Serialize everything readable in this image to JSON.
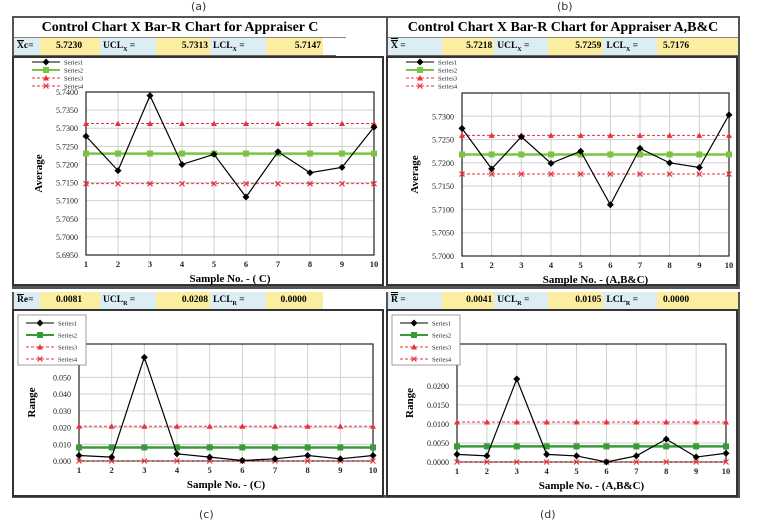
{
  "captions": [
    "(a)",
    "(b)",
    "(c)",
    "(d)"
  ],
  "panels": [
    {
      "title": "Control Chart X Bar-R Chart for Appraiser C",
      "stats": {
        "mean_label": "X",
        "mean_suffix": "c=",
        "mean_value": "5.7230",
        "ucl_label": "UCL",
        "ucl_sub": "X",
        "ucl_eq": " =",
        "ucl_value": "5.7313",
        "lcl_label": "LCL",
        "lcl_sub": "X",
        "lcl_eq": " =",
        "lcl_value": "5.7147"
      }
    },
    {
      "title": "Control Chart X Bar-R Chart for Appraiser A,B&C",
      "stats": {
        "mean_label": "X",
        "mean_suffix": " =",
        "mean_value": "5.7218",
        "ucl_label": "UCL",
        "ucl_sub": "X",
        "ucl_eq": " =",
        "ucl_value": "5.7259",
        "lcl_label": "LCL",
        "lcl_sub": "X",
        "lcl_eq": " =",
        "lcl_value": "5.7176"
      }
    },
    {
      "stats": {
        "mean_label": "R",
        "mean_suffix": "e=",
        "mean_value": "0.0081",
        "ucl_label": "UCL",
        "ucl_sub": "R",
        "ucl_eq": " =",
        "ucl_value": "0.0208",
        "lcl_label": "LCL",
        "lcl_sub": "R",
        "lcl_eq": " =",
        "lcl_value": "0.0000"
      }
    },
    {
      "stats": {
        "mean_label": "R",
        "mean_suffix": " =",
        "mean_value": "0.0041",
        "ucl_label": "UCL",
        "ucl_sub": "R",
        "ucl_eq": " =",
        "ucl_value": "0.0105",
        "lcl_label": "LCL",
        "lcl_sub": "R",
        "lcl_eq": " =",
        "lcl_value": "0.0000"
      }
    }
  ],
  "chart_data": [
    {
      "type": "line",
      "xlabel": "Sample No. - ( C)",
      "ylabel": "Average",
      "categories": [
        "1",
        "2",
        "3",
        "4",
        "5",
        "6",
        "7",
        "8",
        "9",
        "10"
      ],
      "ylim": [
        5.695,
        5.74
      ],
      "yticks": [
        "5.6950",
        "5.7000",
        "5.7050",
        "5.7100",
        "5.7150",
        "5.7200",
        "5.7250",
        "5.7300",
        "5.7350",
        "5.7400"
      ],
      "grid": true,
      "legend": "top-left",
      "series": [
        {
          "name": "Series1",
          "color": "#000000",
          "values": [
            5.7278,
            5.7183,
            5.739,
            5.72,
            5.7228,
            5.711,
            5.7235,
            5.7177,
            5.7192,
            5.7303
          ]
        },
        {
          "name": "Series2",
          "color": "#7dc242",
          "values": [
            5.723,
            5.723,
            5.723,
            5.723,
            5.723,
            5.723,
            5.723,
            5.723,
            5.723,
            5.723
          ]
        },
        {
          "name": "Series3",
          "color": "#e8323c",
          "values": [
            5.7313,
            5.7313,
            5.7313,
            5.7313,
            5.7313,
            5.7313,
            5.7313,
            5.7313,
            5.7313,
            5.7313
          ]
        },
        {
          "name": "Series4",
          "color": "#e8323c",
          "values": [
            5.7147,
            5.7147,
            5.7147,
            5.7147,
            5.7147,
            5.7147,
            5.7147,
            5.7147,
            5.7147,
            5.7147
          ]
        }
      ]
    },
    {
      "type": "line",
      "xlabel": "Sample No. - (A,B&C)",
      "ylabel": "Average",
      "categories": [
        "1",
        "2",
        "3",
        "4",
        "5",
        "6",
        "7",
        "8",
        "9",
        "10"
      ],
      "ylim": [
        5.7,
        5.735
      ],
      "yticks": [
        "5.7000",
        "5.7050",
        "5.7100",
        "5.7150",
        "5.7200",
        "5.7250",
        "5.7300"
      ],
      "grid": true,
      "legend": "top-left",
      "series": [
        {
          "name": "Series1",
          "color": "#000000",
          "values": [
            5.7274,
            5.7187,
            5.7256,
            5.7199,
            5.7225,
            5.711,
            5.7231,
            5.72,
            5.719,
            5.7303
          ]
        },
        {
          "name": "Series2",
          "color": "#7dc242",
          "values": [
            5.7218,
            5.7218,
            5.7218,
            5.7218,
            5.7218,
            5.7218,
            5.7218,
            5.7218,
            5.7218,
            5.7218
          ]
        },
        {
          "name": "Series3",
          "color": "#e8323c",
          "values": [
            5.7259,
            5.7259,
            5.7259,
            5.7259,
            5.7259,
            5.7259,
            5.7259,
            5.7259,
            5.7259,
            5.7259
          ]
        },
        {
          "name": "Series4",
          "color": "#e8323c",
          "values": [
            5.7176,
            5.7176,
            5.7176,
            5.7176,
            5.7176,
            5.7176,
            5.7176,
            5.7176,
            5.7176,
            5.7176
          ]
        }
      ]
    },
    {
      "type": "line",
      "xlabel": "Sample No. - (C)",
      "ylabel": "Range",
      "categories": [
        "1",
        "2",
        "3",
        "4",
        "5",
        "6",
        "7",
        "8",
        "9",
        "10"
      ],
      "ylim": [
        0,
        0.07
      ],
      "yticks": [
        "0.000",
        "0.010",
        "0.020",
        "0.030",
        "0.040",
        "0.050"
      ],
      "grid": true,
      "legend": "top-left",
      "series": [
        {
          "name": "Series1",
          "color": "#000000",
          "values": [
            0.0033,
            0.0023,
            0.062,
            0.0043,
            0.0023,
            0.0003,
            0.0013,
            0.0033,
            0.0013,
            0.0033
          ]
        },
        {
          "name": "Series2",
          "color": "#3a9a3a",
          "values": [
            0.0081,
            0.0081,
            0.0081,
            0.0081,
            0.0081,
            0.0081,
            0.0081,
            0.0081,
            0.0081,
            0.0081
          ]
        },
        {
          "name": "Series3",
          "color": "#e8323c",
          "values": [
            0.0208,
            0.0208,
            0.0208,
            0.0208,
            0.0208,
            0.0208,
            0.0208,
            0.0208,
            0.0208,
            0.0208
          ]
        },
        {
          "name": "Series4",
          "color": "#e8323c",
          "values": [
            0,
            0,
            0,
            0,
            0,
            0,
            0,
            0,
            0,
            0
          ]
        }
      ]
    },
    {
      "type": "line",
      "xlabel": "Sample No. - (A,B&C)",
      "ylabel": "Range",
      "categories": [
        "1",
        "2",
        "3",
        "4",
        "5",
        "6",
        "7",
        "8",
        "9",
        "10"
      ],
      "ylim": [
        0,
        0.031
      ],
      "yticks": [
        "0.0000",
        "0.0050",
        "0.0100",
        "0.0150",
        "0.0200"
      ],
      "grid": true,
      "legend": "top-left",
      "series": [
        {
          "name": "Series1",
          "color": "#000000",
          "values": [
            0.002,
            0.0016,
            0.0218,
            0.002,
            0.0016,
            0.0,
            0.0016,
            0.006,
            0.0013,
            0.0023
          ]
        },
        {
          "name": "Series2",
          "color": "#3a9a3a",
          "values": [
            0.0041,
            0.0041,
            0.0041,
            0.0041,
            0.0041,
            0.0041,
            0.0041,
            0.0041,
            0.0041,
            0.0041
          ]
        },
        {
          "name": "Series3",
          "color": "#e8323c",
          "values": [
            0.0105,
            0.0105,
            0.0105,
            0.0105,
            0.0105,
            0.0105,
            0.0105,
            0.0105,
            0.0105,
            0.0105
          ]
        },
        {
          "name": "Series4",
          "color": "#e8323c",
          "values": [
            0,
            0,
            0,
            0,
            0,
            0,
            0,
            0,
            0,
            0
          ]
        }
      ]
    }
  ]
}
